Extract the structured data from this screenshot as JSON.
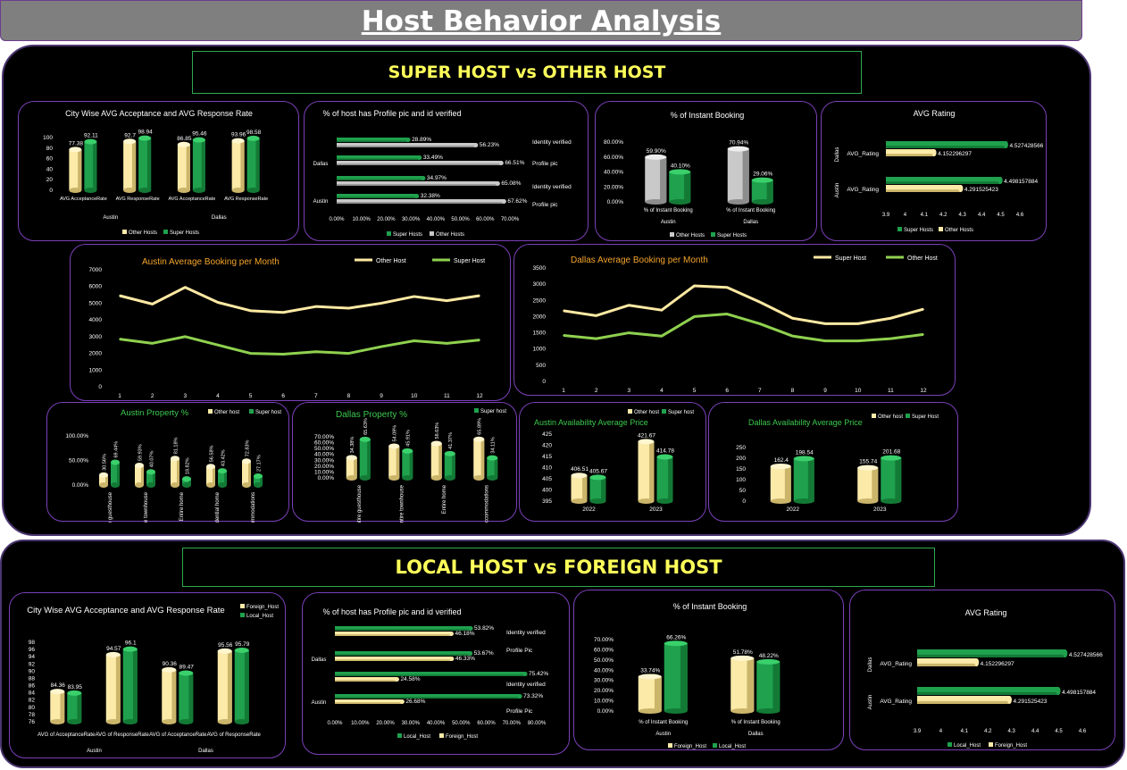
{
  "page": {
    "title": "Host Behavior Analysis"
  },
  "section1": {
    "title": "SUPER HOST vs OTHER HOST"
  },
  "section2": {
    "title": "LOCAL HOST vs FOREIGN HOST"
  },
  "colors": {
    "green": "#1fa14d",
    "cream": "#fbeaa8",
    "gray": "#c9c9c9",
    "lime": "#8fd14f",
    "yellow_line": "#fde9a3",
    "orange_title": "#f4a52b",
    "green_title": "#3cc94e"
  },
  "chart_data": [
    {
      "id": "c1",
      "type": "bar",
      "title": "City Wise AVG Acceptance and AVG Response Rate",
      "categories": [
        "AVG AcceptanceRate",
        "AVG ResponseRate",
        "AVG AcceptanceRate",
        "AVG ResponseRate"
      ],
      "groups": [
        "Austin",
        "Dallas"
      ],
      "ylim": [
        0,
        100
      ],
      "yticks": [
        "0",
        "20",
        "40",
        "60",
        "80",
        "100"
      ],
      "series": [
        {
          "name": "Other Hosts",
          "values": [
            77.38,
            92.7,
            86.85,
            93.96
          ],
          "labels": [
            "77.38",
            "92.7",
            "86.85",
            "93.96"
          ]
        },
        {
          "name": "Super Hosts",
          "values": [
            92.11,
            98.94,
            95.46,
            98.58
          ],
          "labels": [
            "92.11",
            "98.94",
            "95.46",
            "98.58"
          ]
        }
      ]
    },
    {
      "id": "c2",
      "type": "bar",
      "title": "% of host has Profile pic and id verified",
      "rows": [
        "Identity verified",
        "Profile pic",
        "Identity verified",
        "Profile pic"
      ],
      "groups": [
        "Dallas",
        "Austin"
      ],
      "xticks": [
        "0.00%",
        "10.00%",
        "20.00%",
        "30.00%",
        "40.00%",
        "50.00%",
        "60.00%",
        "70.00%"
      ],
      "series": [
        {
          "name": "Super Hosts",
          "values": [
            28.89,
            33.49,
            34.97,
            32.38
          ],
          "labels": [
            "28.89%",
            "33.49%",
            "34.97%",
            "32.38%"
          ]
        },
        {
          "name": "Other Hosts",
          "values": [
            56.23,
            66.51,
            65.08,
            67.62
          ],
          "labels": [
            "56.23%",
            "66.51%",
            "65.08%",
            "67.62%"
          ]
        }
      ]
    },
    {
      "id": "c3",
      "type": "bar",
      "title": "% of Instant Booking",
      "categories": [
        "% of Instant Booking",
        "% of Instant Booking"
      ],
      "groups": [
        "Austin",
        "Dallas"
      ],
      "yticks": [
        "0.00%",
        "20.00%",
        "40.00%",
        "60.00%",
        "80.00%"
      ],
      "series": [
        {
          "name": "Other Hosts",
          "values": [
            59.9,
            70.94
          ],
          "labels": [
            "59.90%",
            "70.94%"
          ]
        },
        {
          "name": "Super Hosts",
          "values": [
            40.1,
            29.06
          ],
          "labels": [
            "40.10%",
            "29.06%"
          ]
        }
      ]
    },
    {
      "id": "c4",
      "type": "bar",
      "title": "AVG Rating",
      "rows": [
        "AVG_Rating",
        "AVG_Rating"
      ],
      "groups": [
        "Dallas",
        "Austin"
      ],
      "xticks": [
        "3.9",
        "4",
        "4.1",
        "4.2",
        "4.3",
        "4.4",
        "4.5",
        "4.6"
      ],
      "series": [
        {
          "name": "Super Hosts",
          "values": [
            4.527428566,
            4.498157884
          ],
          "labels": [
            "4.527428566",
            "4.498157884"
          ]
        },
        {
          "name": "Other Hosts",
          "values": [
            4.152296297,
            4.291525423
          ],
          "labels": [
            "4.152296297",
            "4.291525423"
          ]
        }
      ]
    },
    {
      "id": "c5",
      "type": "line",
      "title": "Austin Average Booking per Month",
      "x": [
        "1",
        "2",
        "3",
        "4",
        "5",
        "6",
        "7",
        "8",
        "9",
        "10",
        "11",
        "12"
      ],
      "yticks": [
        "0",
        "1000",
        "2000",
        "3000",
        "4000",
        "5000",
        "6000",
        "7000"
      ],
      "ylim": [
        0,
        7000
      ],
      "series": [
        {
          "name": "Other Host",
          "values": [
            5450,
            4950,
            5950,
            5050,
            4550,
            4450,
            4800,
            4700,
            5000,
            5400,
            5150,
            5450
          ]
        },
        {
          "name": "Super Host",
          "values": [
            2850,
            2600,
            3000,
            2500,
            2000,
            1950,
            2100,
            2000,
            2400,
            2750,
            2600,
            2800
          ]
        }
      ]
    },
    {
      "id": "c6",
      "type": "line",
      "title": "Dallas Average Booking per Month",
      "x": [
        "1",
        "2",
        "3",
        "4",
        "5",
        "6",
        "7",
        "8",
        "9",
        "10",
        "11",
        "12"
      ],
      "yticks": [
        "0",
        "500",
        "1000",
        "1500",
        "2000",
        "2500",
        "3000",
        "3500"
      ],
      "ylim": [
        0,
        3500
      ],
      "series": [
        {
          "name": "Super Host",
          "values": [
            2180,
            2030,
            2350,
            2200,
            2950,
            2900,
            2450,
            1950,
            1780,
            1780,
            1950,
            2230
          ]
        },
        {
          "name": "Other Host",
          "values": [
            1420,
            1320,
            1500,
            1400,
            2000,
            2080,
            1780,
            1400,
            1250,
            1250,
            1320,
            1450
          ]
        }
      ]
    },
    {
      "id": "c7",
      "type": "bar",
      "title": "Austin Property %",
      "categories": [
        "Entire guesthouse",
        "Entire townhouse",
        "Entire home",
        "Entire residential home",
        "Private accommodations"
      ],
      "yticks": [
        "0.00%",
        "50.00%",
        "100.00%"
      ],
      "series": [
        {
          "name": "Other host",
          "values": [
            30.56,
            59.93,
            81.18,
            56.58,
            72.83
          ],
          "labels": [
            "30.56%",
            "59.93%",
            "81.18%",
            "56.58%",
            "72.83%"
          ]
        },
        {
          "name": "Super host",
          "values": [
            69.44,
            40.07,
            18.82,
            43.42,
            27.17
          ],
          "labels": [
            "69.44%",
            "40.07%",
            "18.82%",
            "43.42%",
            "27.17%"
          ]
        }
      ]
    },
    {
      "id": "c8",
      "type": "bar",
      "title": "Dallas Property %",
      "categories": [
        "Entire guesthouse",
        "Entire townhouse",
        "Entire home",
        "Private accommodations"
      ],
      "yticks": [
        "0.00%",
        "10.00%",
        "20.00%",
        "30.00%",
        "40.00%",
        "50.00%",
        "60.00%",
        "70.00%"
      ],
      "series": [
        {
          "name": "Other host",
          "values": [
            34.38,
            54.09,
            58.63,
            65.89
          ],
          "labels": [
            "34.38%",
            "54.09%",
            "58.63%",
            "65.89%"
          ]
        },
        {
          "name": "Super host",
          "values": [
            65.63,
            45.91,
            41.37,
            34.11
          ],
          "labels": [
            "65.63%",
            "45.91%",
            "41.37%",
            "34.11%"
          ]
        }
      ]
    },
    {
      "id": "c9",
      "type": "bar",
      "title": "Austin Availability Average  Price",
      "categories": [
        "2022",
        "2023"
      ],
      "ylim": [
        395,
        425
      ],
      "yticks": [
        "395",
        "400",
        "405",
        "410",
        "415",
        "420",
        "425"
      ],
      "series": [
        {
          "name": "Other host",
          "values": [
            406.51,
            421.67
          ],
          "labels": [
            "406.51",
            "421.67"
          ]
        },
        {
          "name": "Super host",
          "values": [
            405.67,
            414.78
          ],
          "labels": [
            "405.67",
            "414.78"
          ]
        }
      ]
    },
    {
      "id": "c10",
      "type": "bar",
      "title": "Dallas Availability Average  Price",
      "categories": [
        "2022",
        "2023"
      ],
      "ylim": [
        0,
        250
      ],
      "yticks": [
        "0",
        "50",
        "100",
        "150",
        "200",
        "250"
      ],
      "series": [
        {
          "name": "Other host",
          "values": [
            162.4,
            155.74
          ],
          "labels": [
            "162.4",
            "155.74"
          ]
        },
        {
          "name": "Super Host",
          "values": [
            198.54,
            201.68
          ],
          "labels": [
            "198.54",
            "201.68"
          ]
        }
      ]
    },
    {
      "id": "c11",
      "type": "bar",
      "title": "City Wise AVG Acceptance and AVG Response Rate",
      "categories": [
        "AVG of AcceptanceRate",
        "AVG of ResponseRate",
        "AVG of AcceptanceRate",
        "AVG of ResponseRate"
      ],
      "groups": [
        "Austin",
        "Dallas"
      ],
      "ylim": [
        76,
        98
      ],
      "yticks": [
        "76",
        "78",
        "80",
        "82",
        "84",
        "86",
        "88",
        "90",
        "92",
        "94",
        "96",
        "98"
      ],
      "series": [
        {
          "name": "Foreign_Host",
          "values": [
            84.36,
            94.57,
            90.36,
            95.56
          ],
          "labels": [
            "84.36",
            "94.57",
            "90.36",
            "95.56"
          ]
        },
        {
          "name": "Local_Host",
          "values": [
            83.95,
            96.1,
            89.47,
            95.79
          ],
          "labels": [
            "83.95",
            "96.1",
            "89.47",
            "95.79"
          ]
        }
      ]
    },
    {
      "id": "c12",
      "type": "bar",
      "title": "% of host has Profile pic and id verified",
      "rows": [
        "Identity verified",
        "Profile Pic",
        "Identity verified",
        "Profile Pic"
      ],
      "groups": [
        "Dallas",
        "Austin"
      ],
      "xticks": [
        "0.00%",
        "10.00%",
        "20.00%",
        "30.00%",
        "40.00%",
        "50.00%",
        "60.00%",
        "70.00%",
        "80.00%"
      ],
      "series": [
        {
          "name": "Local_Host",
          "values": [
            53.82,
            53.67,
            75.42,
            73.32
          ],
          "labels": [
            "53.82%",
            "53.67%",
            "75.42%",
            "73.32%"
          ]
        },
        {
          "name": "Foreign_Host",
          "values": [
            46.18,
            46.33,
            24.58,
            26.68
          ],
          "labels": [
            "46.18%",
            "46.33%",
            "24.58%",
            "26.68%"
          ]
        }
      ]
    },
    {
      "id": "c13",
      "type": "bar",
      "title": "% of Instant Booking",
      "categories": [
        "% of Instant Booking",
        "% of Instant Booking"
      ],
      "groups": [
        "Austin",
        "Dallas"
      ],
      "yticks": [
        "0.00%",
        "10.00%",
        "20.00%",
        "30.00%",
        "40.00%",
        "50.00%",
        "60.00%",
        "70.00%"
      ],
      "series": [
        {
          "name": "Foreign_Host",
          "values": [
            33.74,
            51.78
          ],
          "labels": [
            "33.74%",
            "51.78%"
          ]
        },
        {
          "name": "Local_Host",
          "values": [
            66.26,
            48.22
          ],
          "labels": [
            "66.26%",
            "48.22%"
          ]
        }
      ]
    },
    {
      "id": "c14",
      "type": "bar",
      "title": "AVG Rating",
      "rows": [
        "AVG_Rating",
        "AVG_Rating"
      ],
      "groups": [
        "Dallas",
        "Austin"
      ],
      "xticks": [
        "3.9",
        "4",
        "4.1",
        "4.2",
        "4.3",
        "4.4",
        "4.5",
        "4.6"
      ],
      "series": [
        {
          "name": "Local_Host",
          "values": [
            4.527428566,
            4.498157884
          ],
          "labels": [
            "4.527428566",
            "4.498157884"
          ]
        },
        {
          "name": "Foreign_Host",
          "values": [
            4.152296297,
            4.291525423
          ],
          "labels": [
            "4.152296297",
            "4.291525423"
          ]
        }
      ]
    }
  ]
}
